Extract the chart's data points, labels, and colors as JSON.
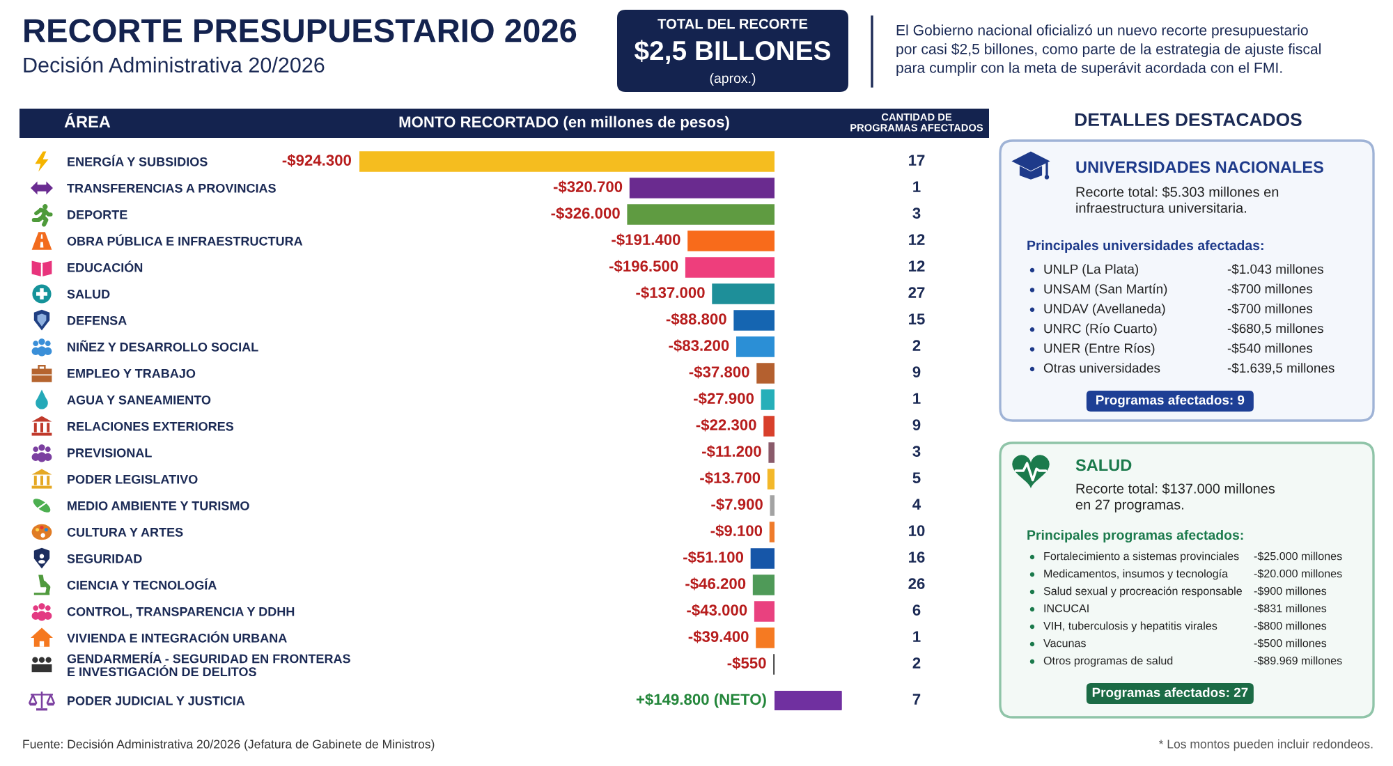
{
  "chart_data": [
    {
      "type": "bar",
      "orientation": "horizontal",
      "title": "RECORTE PRESUPUESTARIO 2026",
      "subtitle": "Decisión Administrativa 20/2026",
      "xlabel": "MONTO RECORTADO (en millones de pesos)",
      "ylabel": "ÁREA",
      "tick_labels": "y",
      "categories": [
        "ENERGÍA Y SUBSIDIOS",
        "TRANSFERENCIAS A PROVINCIAS",
        "DEPORTE",
        "OBRA PÚBLICA E INFRAESTRUCTURA",
        "EDUCACIÓN",
        "SALUD",
        "DEFENSA",
        "NIÑEZ Y DESARROLLO SOCIAL",
        "EMPLEO Y TRABAJO",
        "AGUA Y SANEAMIENTO",
        "RELACIONES EXTERIORES",
        "PREVISIONAL",
        "PODER LEGISLATIVO",
        "MEDIO AMBIENTE Y TURISMO",
        "CULTURA Y ARTES",
        "SEGURIDAD",
        "CIENCIA Y TECNOLOGÍA",
        "CONTROL, TRANSPARENCIA Y DDHH",
        "VIVIENDA E INTEGRACIÓN URBANA",
        "GENDARMERÍA - SEGURIDAD EN FRONTERAS\nE INVESTIGACIÓN DE DELITOS"
      ],
      "values": [
        -924300,
        -320700,
        -326000,
        -191400,
        -196500,
        -137000,
        -88800,
        -83200,
        -37800,
        -27900,
        -22300,
        -11200,
        -13700,
        -7900,
        -9100,
        -51100,
        -46200,
        -43000,
        -39400,
        -550
      ],
      "colors": [
        "#f5bd1f",
        "#6a2b8f",
        "#5f9b41",
        "#f86b1b",
        "#ee3e7c",
        "#1e8f99",
        "#1565b1",
        "#2b8fd6",
        "#b4602f",
        "#26afb9",
        "#d8402c",
        "#8a5b6b",
        "#f3b82a",
        "#a3a3a3",
        "#ef7b2b",
        "#1656a8",
        "#4f9a58",
        "#e9417f",
        "#f57a22",
        "#222222"
      ],
      "value_labels": [
        "-$924.300",
        "-$320.700",
        "-$326.000",
        "-$191.400",
        "-$196.500",
        "-$137.000",
        "-$88.800",
        "-$83.200",
        "-$37.800",
        "-$27.900",
        "-$22.300",
        "-$11.200",
        "-$13.700",
        "-$7.900",
        "-$9.100",
        "-$51.100",
        "-$46.200",
        "-$43.000",
        "-$39.400",
        "-$550"
      ],
      "annotations": [
        "TOTAL DEL RECORTE",
        "$2,5 BILLONES",
        "(aprox.)",
        "El Gobierno nacional oficializó un nuevo recorte presupuestario\npor casi $2,5 billones, como parte de la estrategia de ajuste fiscal\npara cumplir con la meta de superávit acordada con el FMI.",
        "DETALLES DESTACADOS",
        "Fuente: Decisión Administrativa 20/2026 (Jefatura de Gabinete de Ministros)",
        "* Los montos pueden incluir redondeos."
      ]
    },
    {
      "type": "bar",
      "orientation": "horizontal",
      "tick_labels": "y",
      "categories": [
        "PODER JUDICIAL Y JUSTICIA"
      ],
      "values": [
        149800
      ],
      "colors": [
        "#7030a0"
      ],
      "value_labels": [
        "+$149.800 (NETO)"
      ]
    },
    {
      "type": "other",
      "title": "CANTIDAD DE\nPROGRAMAS AFECTADOS",
      "values": [
        17,
        1,
        3,
        12,
        12,
        27,
        15,
        2,
        9,
        1,
        9,
        3,
        5,
        4,
        10,
        16,
        26,
        6,
        1,
        2,
        7
      ],
      "data_labels": true
    },
    {
      "type": "other",
      "title": "UNIVERSIDADES NACIONALES",
      "subtitle": "Recorte total: $5.303 millones en\ninfraestructura universitaria.",
      "annotations": [
        "Principales universidades afectadas:",
        "UNLP (La Plata)",
        "-$1.043 millones",
        "UNSAM (San Martín)",
        "-$700 millones",
        "UNDAV (Avellaneda)",
        "-$700 millones",
        "UNRC (Río Cuarto)",
        "-$680,5 millones",
        "UNER (Entre Ríos)",
        "-$540 millones",
        "Otras universidades",
        "-$1.639,5 millones",
        "Programas afectados: 9"
      ]
    },
    {
      "type": "other",
      "title": "SALUD",
      "subtitle": "Recorte total: $137.000 millones\nen 27 programas.",
      "annotations": [
        "Principales programas afectados:",
        "Fortalecimiento a sistemas provinciales",
        "-$25.000 millones",
        "Medicamentos, insumos y tecnología",
        "-$20.000 millones",
        "Salud sexual y procreación responsable",
        "-$900 millones",
        "INCUCAI",
        "-$831 millones",
        "VIH, tuberculosis y hepatitis virales",
        "-$800 millones",
        "Vacunas",
        "-$500 millones",
        "Otros programas de salud",
        "-$89.969 millones",
        "Programas afectados: 27"
      ]
    }
  ]
}
